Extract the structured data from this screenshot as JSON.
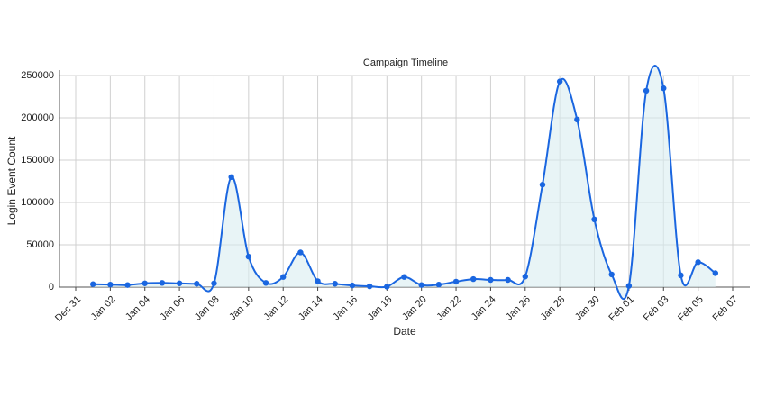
{
  "chart_data": {
    "type": "line",
    "title": "Campaign Timeline",
    "x_label": "Date",
    "y_label": "Login Event Count",
    "x": [
      "Jan 01",
      "Jan 02",
      "Jan 03",
      "Jan 04",
      "Jan 05",
      "Jan 06",
      "Jan 07",
      "Jan 08",
      "Jan 09",
      "Jan 10",
      "Jan 11",
      "Jan 12",
      "Jan 13",
      "Jan 14",
      "Jan 15",
      "Jan 16",
      "Jan 17",
      "Jan 18",
      "Jan 19",
      "Jan 20",
      "Jan 21",
      "Jan 22",
      "Jan 23",
      "Jan 24",
      "Jan 25",
      "Jan 26",
      "Jan 27",
      "Jan 28",
      "Jan 29",
      "Jan 30",
      "Jan 31",
      "Feb 01",
      "Feb 02",
      "Feb 03",
      "Feb 04",
      "Feb 05",
      "Feb 06"
    ],
    "series": [
      {
        "name": "Login Event Count",
        "color": "#1a66e0",
        "values": [
          3500,
          3000,
          2500,
          4500,
          5000,
          4500,
          4000,
          4500,
          130000,
          36000,
          5000,
          12000,
          41000,
          7000,
          4000,
          2000,
          1000,
          500,
          12000,
          2500,
          3000,
          6500,
          9500,
          8500,
          8500,
          12500,
          121000,
          243000,
          198000,
          80000,
          15000,
          1500,
          232000,
          235000,
          14000,
          29500,
          16500
        ]
      }
    ],
    "xlim": [
      "Dec 31",
      "Feb 07"
    ],
    "xticks": [
      "Dec 31",
      "Jan 02",
      "Jan 04",
      "Jan 06",
      "Jan 08",
      "Jan 10",
      "Jan 12",
      "Jan 14",
      "Jan 16",
      "Jan 18",
      "Jan 20",
      "Jan 22",
      "Jan 24",
      "Jan 26",
      "Jan 28",
      "Jan 30",
      "Feb 01",
      "Feb 03",
      "Feb 05",
      "Feb 07"
    ],
    "ylim": [
      0,
      250000
    ],
    "yticks": [
      0,
      50000,
      100000,
      150000,
      200000,
      250000
    ],
    "grid": true,
    "fill": "#d8ecf0"
  }
}
